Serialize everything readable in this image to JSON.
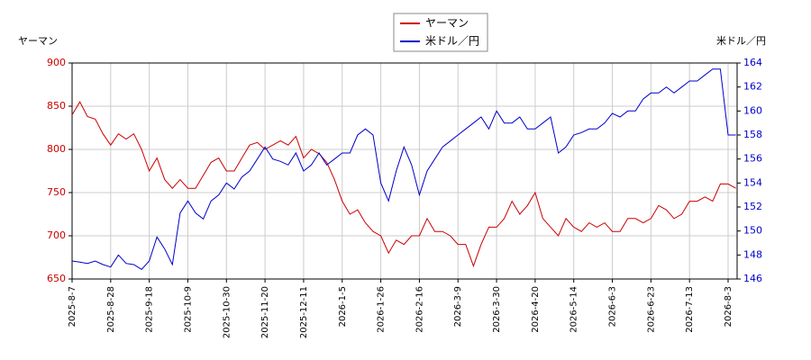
{
  "chart_data": {
    "type": "line",
    "y_label": "ヤーマン",
    "y2_label": "米ドル／円",
    "categories": [
      "2025-8-7",
      null,
      null,
      null,
      null,
      "2025-8-28",
      null,
      null,
      null,
      null,
      "2025-9-18",
      null,
      null,
      null,
      null,
      "2025-10-9",
      null,
      null,
      null,
      null,
      "2025-10-30",
      null,
      null,
      null,
      null,
      "2025-11-20",
      null,
      null,
      null,
      null,
      "2025-12-11",
      null,
      null,
      null,
      null,
      "2026-1-5",
      null,
      null,
      null,
      null,
      "2026-1-26",
      null,
      null,
      null,
      null,
      "2026-2-16",
      null,
      null,
      null,
      null,
      "2026-3-9",
      null,
      null,
      null,
      null,
      "2026-3-30",
      null,
      null,
      null,
      null,
      "2026-4-20",
      null,
      null,
      null,
      null,
      "2026-5-14",
      null,
      null,
      null,
      null,
      "2026-6-3",
      null,
      null,
      null,
      null,
      "2026-6-23",
      null,
      null,
      null,
      null,
      "2026-7-13",
      null,
      null,
      null,
      null,
      "2026-8-3",
      null
    ],
    "series": [
      {
        "name": "ヤーマン",
        "color": "#cc0000",
        "axis": "y",
        "values": [
          840,
          855,
          838,
          835,
          818,
          805,
          818,
          812,
          818,
          800,
          775,
          790,
          765,
          755,
          765,
          755,
          755,
          770,
          785,
          790,
          775,
          775,
          790,
          805,
          808,
          800,
          805,
          810,
          805,
          815,
          790,
          800,
          795,
          785,
          765,
          740,
          725,
          730,
          715,
          705,
          700,
          680,
          695,
          690,
          700,
          700,
          720,
          705,
          705,
          700,
          690,
          690,
          665,
          690,
          710,
          710,
          720,
          740,
          725,
          735,
          750,
          720,
          710,
          700,
          720,
          710,
          705,
          715,
          710,
          715,
          705,
          705,
          720,
          720,
          715,
          720,
          735,
          730,
          720,
          725,
          740,
          740,
          745,
          740,
          760,
          760,
          755
        ]
      },
      {
        "name": "米ドル／円",
        "color": "#0000cc",
        "axis": "y2",
        "values": [
          147.5,
          147.4,
          147.3,
          147.5,
          147.2,
          147.0,
          148.0,
          147.3,
          147.2,
          146.8,
          147.5,
          149.5,
          148.5,
          147.2,
          151.5,
          152.5,
          151.5,
          151.0,
          152.5,
          153.0,
          154.0,
          153.5,
          154.5,
          155.0,
          156.0,
          157.0,
          156.0,
          155.8,
          155.5,
          156.5,
          155.0,
          155.5,
          156.5,
          155.5,
          156.0,
          156.5,
          156.5,
          158.0,
          158.5,
          158.0,
          154.0,
          152.5,
          155.0,
          157.0,
          155.5,
          153.0,
          155.0,
          156.0,
          157.0,
          157.5,
          158.0,
          158.5,
          159.0,
          159.5,
          158.5,
          160.0,
          159.0,
          159.0,
          159.5,
          158.5,
          158.5,
          159.0,
          159.5,
          156.5,
          157.0,
          158.0,
          158.2,
          158.5,
          158.5,
          159.0,
          159.8,
          159.5,
          160.0,
          160.0,
          161.0,
          161.5,
          161.5,
          162.0,
          161.5,
          162.0,
          162.5,
          162.5,
          163.0,
          163.5,
          163.5,
          158.0,
          158.0
        ]
      }
    ],
    "ylim": [
      650,
      900
    ],
    "yticks": [
      650,
      700,
      750,
      800,
      850,
      900
    ],
    "y2lim": [
      146,
      164
    ],
    "y2ticks": [
      146,
      148,
      150,
      152,
      154,
      156,
      158,
      160,
      162,
      164
    ],
    "grid": true,
    "legend": "top"
  }
}
